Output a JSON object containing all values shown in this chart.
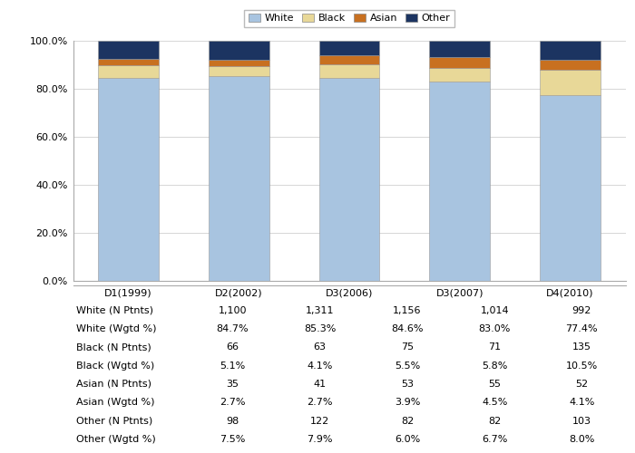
{
  "categories": [
    "D1(1999)",
    "D2(2002)",
    "D3(2006)",
    "D3(2007)",
    "D4(2010)"
  ],
  "white_pct": [
    84.7,
    85.3,
    84.6,
    83.0,
    77.4
  ],
  "black_pct": [
    5.1,
    4.1,
    5.5,
    5.8,
    10.5
  ],
  "asian_pct": [
    2.7,
    2.7,
    3.9,
    4.5,
    4.1
  ],
  "other_pct": [
    7.5,
    7.9,
    6.0,
    6.7,
    8.0
  ],
  "color_white": "#a8c4e0",
  "color_black": "#e8d898",
  "color_asian": "#c87020",
  "color_other": "#1c3461",
  "bar_width": 0.55,
  "ylim": [
    0,
    100
  ],
  "yticks": [
    0,
    20,
    40,
    60,
    80,
    100
  ],
  "ytick_labels": [
    "0.0%",
    "20.0%",
    "40.0%",
    "60.0%",
    "80.0%",
    "100.0%"
  ],
  "table_rows": [
    "White (N Ptnts)",
    "White (Wgtd %)",
    "Black (N Ptnts)",
    "Black (Wgtd %)",
    "Asian (N Ptnts)",
    "Asian (Wgtd %)",
    "Other (N Ptnts)",
    "Other (Wgtd %)"
  ],
  "table_data": [
    [
      "1,100",
      "1,311",
      "1,156",
      "1,014",
      "992"
    ],
    [
      "84.7%",
      "85.3%",
      "84.6%",
      "83.0%",
      "77.4%"
    ],
    [
      "66",
      "63",
      "75",
      "71",
      "135"
    ],
    [
      "5.1%",
      "4.1%",
      "5.5%",
      "5.8%",
      "10.5%"
    ],
    [
      "35",
      "41",
      "53",
      "55",
      "52"
    ],
    [
      "2.7%",
      "2.7%",
      "3.9%",
      "4.5%",
      "4.1%"
    ],
    [
      "98",
      "122",
      "82",
      "82",
      "103"
    ],
    [
      "7.5%",
      "7.9%",
      "6.0%",
      "6.7%",
      "8.0%"
    ]
  ],
  "bg_color": "#ffffff",
  "grid_color": "#d0d0d0",
  "legend_fontsize": 8,
  "tick_fontsize": 8,
  "table_fontsize": 8
}
